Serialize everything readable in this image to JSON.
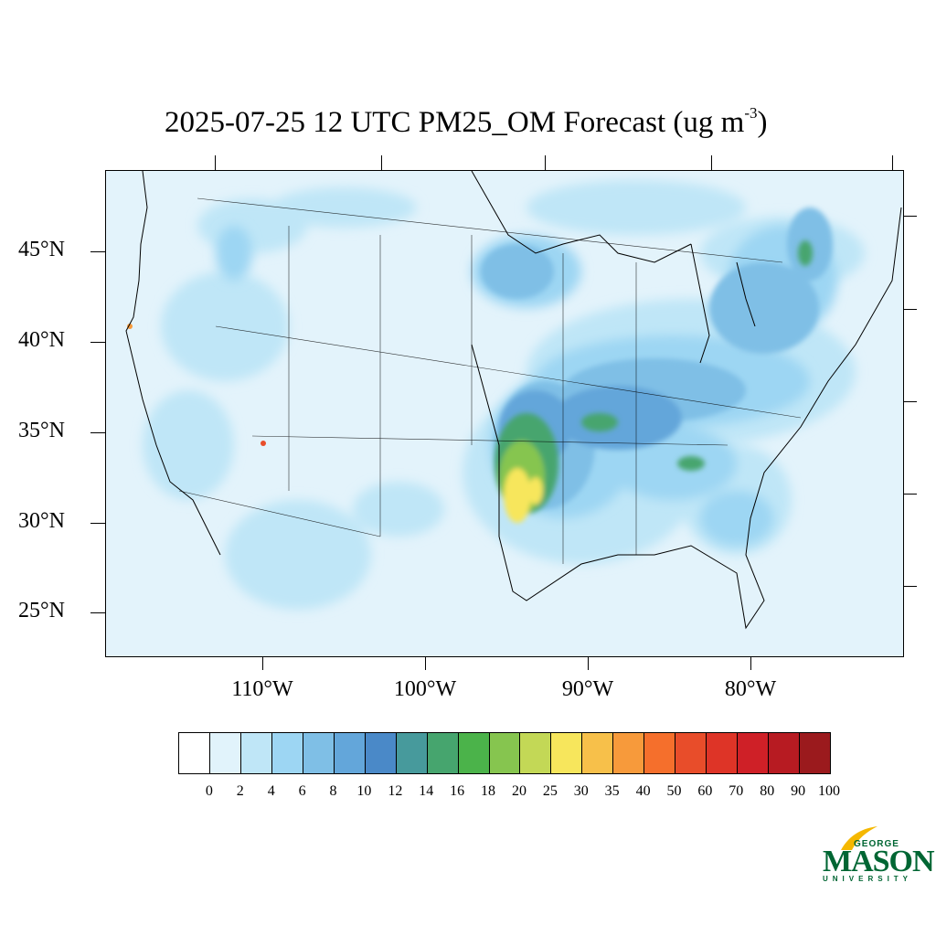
{
  "title": {
    "main": "2025-07-25 12 UTC PM25_OM Forecast (ug m",
    "exponent": "-3",
    "closing": ")"
  },
  "axes": {
    "lat_labels": [
      "45°N",
      "40°N",
      "35°N",
      "30°N",
      "25°N"
    ],
    "lon_labels": [
      "110°W",
      "100°W",
      "90°W",
      "80°W"
    ]
  },
  "colorbar": {
    "levels": [
      "0",
      "2",
      "4",
      "6",
      "8",
      "10",
      "12",
      "14",
      "16",
      "18",
      "20",
      "25",
      "30",
      "35",
      "40",
      "50",
      "60",
      "70",
      "80",
      "90",
      "100"
    ],
    "colors": [
      "#ffffff",
      "#e1f3fb",
      "#bfe6f7",
      "#9dd6f3",
      "#7fbfe6",
      "#63a6da",
      "#4a89c8",
      "#479a9c",
      "#46a56e",
      "#4bb34a",
      "#86c54f",
      "#c3d856",
      "#f7e65c",
      "#f7c04a",
      "#f79a3b",
      "#f56f2c",
      "#e84d2a",
      "#de3427",
      "#cf2027",
      "#b71b22",
      "#9b1a1d"
    ]
  },
  "logo": {
    "george": "GEORGE",
    "mason": "MASON",
    "university": "UNIVERSITY",
    "color": "#006633",
    "accent": "#f5b800"
  }
}
